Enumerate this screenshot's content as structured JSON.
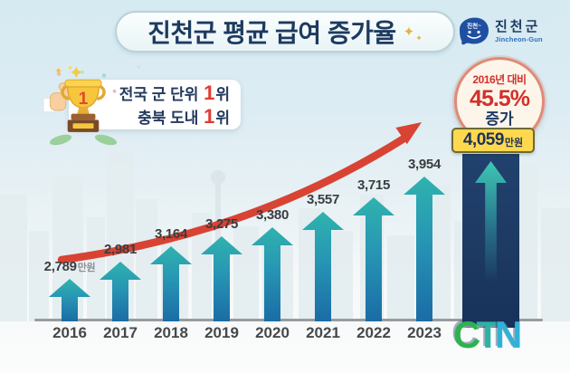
{
  "decor": {
    "sparkle": "✦"
  },
  "header": {
    "title": "진천군 평균 급여 증가율",
    "logo": {
      "mascot": "진천~",
      "name": "진천군",
      "name_en": "Jincheon-Gun"
    }
  },
  "award": {
    "trophy_number": "1",
    "line1": {
      "prefix": "전국 군 단위 ",
      "rank": "1",
      "suffix": "위"
    },
    "line2": {
      "prefix": "충북 도내 ",
      "rank": "1",
      "suffix": "위"
    }
  },
  "highlight": {
    "compare": "2016년 대비",
    "percent": "45.5%",
    "change": "증가",
    "value": "4,059",
    "unit": "만원"
  },
  "watermark": {
    "text": "CTN",
    "letters": [
      "C",
      "T",
      "N"
    ],
    "colors": [
      "#2eb24d",
      "#2bb3a4",
      "#30b2d8"
    ]
  },
  "chart_data": {
    "type": "bar",
    "title": "진천군 평균 급여 증가율",
    "categories": [
      "2016",
      "2017",
      "2018",
      "2019",
      "2020",
      "2021",
      "2022",
      "2023"
    ],
    "values": [
      2789,
      2981,
      3164,
      3275,
      3380,
      3557,
      3715,
      3954
    ],
    "labels": [
      {
        "t": "2,789",
        "u": "만원"
      },
      {
        "t": "2,981"
      },
      {
        "t": "3,164"
      },
      {
        "t": "3,275"
      },
      {
        "t": "3,380"
      },
      {
        "t": "3,557"
      },
      {
        "t": "3,715"
      },
      {
        "t": "3,954"
      }
    ],
    "highlight_bar": {
      "value": 4059,
      "label": "4,059",
      "unit": "만원",
      "percent_vs_2016": "45.5%"
    },
    "unit": "만원",
    "xlabel": "",
    "ylabel": "",
    "ylim": [
      2300,
      4200
    ],
    "grid": false,
    "legend": false,
    "colors": {
      "bar_gradient_top": "#2fb3ae",
      "bar_gradient_bottom": "#1a6ca5",
      "highlight_bar": "#1d3a63",
      "trend_arrow": "#d84334",
      "badge_bg": "#ffd84f",
      "percent_red": "#d2302c",
      "title_navy": "#1d3a5f"
    }
  }
}
